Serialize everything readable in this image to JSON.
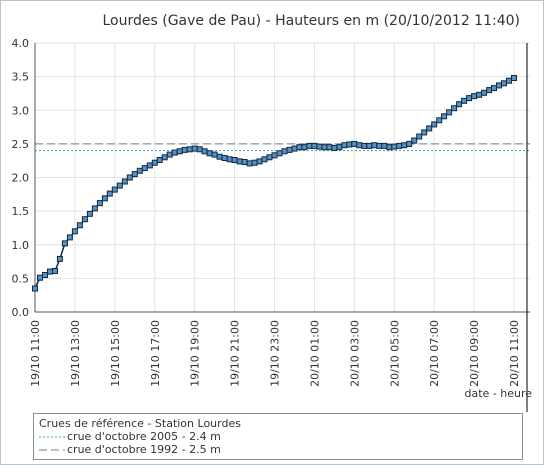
{
  "chart_data": {
    "type": "line",
    "title": "Lourdes (Gave de Pau) - Hauteurs en m (20/10/2012 11:40)",
    "xlabel": "date - heure",
    "ylabel": "",
    "ylim": [
      0,
      4
    ],
    "yticks": [
      "0.0",
      "0.5",
      "1.0",
      "1.5",
      "2.0",
      "2.5",
      "3.0",
      "3.5",
      "4.0"
    ],
    "xticks": [
      "19/10 11:00",
      "19/10 13:00",
      "19/10 15:00",
      "19/10 17:00",
      "19/10 19:00",
      "19/10 21:00",
      "19/10 23:00",
      "20/10 01:00",
      "20/10 03:00",
      "20/10 05:00",
      "20/10 07:00",
      "20/10 09:00",
      "20/10 11:00"
    ],
    "grid": true,
    "current_time": "20/10/2012 11:40",
    "series": [
      {
        "name": "",
        "color": "#0a2a44",
        "marker_color": "#5b8fc0",
        "values": [
          0.35,
          0.51,
          0.55,
          0.6,
          0.61,
          0.79,
          1.02,
          1.11,
          1.2,
          1.29,
          1.38,
          1.46,
          1.54,
          1.62,
          1.69,
          1.76,
          1.82,
          1.88,
          1.94,
          2.0,
          2.05,
          2.1,
          2.14,
          2.18,
          2.22,
          2.26,
          2.3,
          2.34,
          2.37,
          2.39,
          2.41,
          2.42,
          2.43,
          2.42,
          2.39,
          2.36,
          2.34,
          2.31,
          2.29,
          2.27,
          2.26,
          2.24,
          2.23,
          2.21,
          2.22,
          2.24,
          2.27,
          2.3,
          2.33,
          2.36,
          2.39,
          2.41,
          2.43,
          2.45,
          2.45,
          2.47,
          2.47,
          2.46,
          2.45,
          2.45,
          2.44,
          2.45,
          2.48,
          2.49,
          2.5,
          2.48,
          2.47,
          2.47,
          2.48,
          2.47,
          2.47,
          2.45,
          2.46,
          2.47,
          2.48,
          2.5,
          2.55,
          2.61,
          2.67,
          2.73,
          2.79,
          2.85,
          2.91,
          2.97,
          3.03,
          3.09,
          3.14,
          3.18,
          3.21,
          3.23,
          3.26,
          3.3,
          3.33,
          3.37,
          3.4,
          3.44,
          3.48
        ]
      }
    ],
    "reference_lines": [
      {
        "value": 2.4,
        "color": "#3aa9a0",
        "style": "dotted"
      },
      {
        "value": 2.5,
        "color": "#6b7fa8",
        "style": "dashed"
      }
    ],
    "legend": {
      "title": "Crues de référence - Station Lourdes",
      "position": "bottom",
      "entries": [
        {
          "label": "crue d'octobre 2005 - 2.4 m",
          "color": "#3aa9a0",
          "style": "dotted"
        },
        {
          "label": "crue d'octobre 1992 - 2.5 m",
          "color": "#6b7fa8",
          "style": "dashed"
        }
      ]
    }
  }
}
